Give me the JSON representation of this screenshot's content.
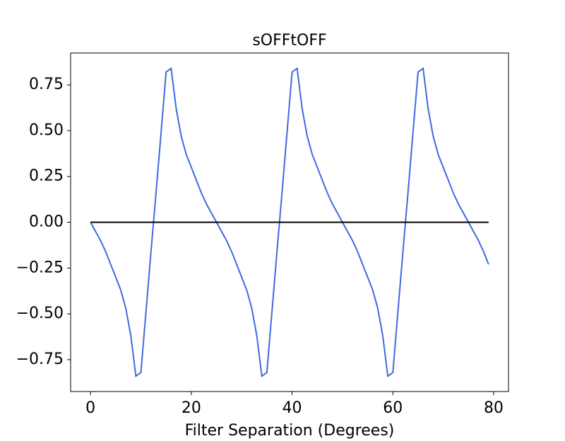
{
  "chart_data": {
    "type": "line",
    "title": "sOFFtOFF",
    "x_label": "Filter Separation (Degrees)",
    "x": [
      0,
      1,
      2,
      3,
      4,
      5,
      6,
      7,
      8,
      9,
      10,
      11,
      12,
      13,
      14,
      15,
      16,
      17,
      18,
      19,
      20,
      21,
      22,
      23,
      24,
      25,
      26,
      27,
      28,
      29,
      30,
      31,
      32,
      33,
      34,
      35,
      36,
      37,
      38,
      39,
      40,
      41,
      42,
      43,
      44,
      45,
      46,
      47,
      48,
      49,
      50,
      51,
      52,
      53,
      54,
      55,
      56,
      57,
      58,
      59,
      60,
      61,
      62,
      63,
      64,
      65,
      66,
      67,
      68,
      69,
      70,
      71,
      72,
      73,
      74,
      75,
      76,
      77,
      78,
      79
    ],
    "series": [
      {
        "color": "#4169e1",
        "values": [
          0,
          -0.05,
          -0.1,
          -0.16,
          -0.23,
          -0.3,
          -0.37,
          -0.47,
          -0.62,
          -0.84,
          -0.82,
          -0.49,
          -0.16,
          0.16,
          0.49,
          0.82,
          0.84,
          0.62,
          0.47,
          0.37,
          0.3,
          0.23,
          0.16,
          0.1,
          0.05,
          0,
          -0.05,
          -0.1,
          -0.16,
          -0.23,
          -0.3,
          -0.37,
          -0.47,
          -0.62,
          -0.84,
          -0.82,
          -0.49,
          -0.16,
          0.16,
          0.49,
          0.82,
          0.84,
          0.62,
          0.47,
          0.37,
          0.3,
          0.23,
          0.16,
          0.1,
          0.05,
          0,
          -0.05,
          -0.1,
          -0.16,
          -0.23,
          -0.3,
          -0.37,
          -0.47,
          -0.62,
          -0.84,
          -0.82,
          -0.49,
          -0.16,
          0.16,
          0.49,
          0.82,
          0.84,
          0.62,
          0.47,
          0.37,
          0.3,
          0.23,
          0.16,
          0.1,
          0.05,
          0,
          -0.05,
          -0.1,
          -0.16,
          -0.23
        ]
      },
      {
        "color": "#000000",
        "values": [
          0,
          0,
          0,
          0,
          0,
          0,
          0,
          0,
          0,
          0,
          0,
          0,
          0,
          0,
          0,
          0,
          0,
          0,
          0,
          0,
          0,
          0,
          0,
          0,
          0,
          0,
          0,
          0,
          0,
          0,
          0,
          0,
          0,
          0,
          0,
          0,
          0,
          0,
          0,
          0,
          0,
          0,
          0,
          0,
          0,
          0,
          0,
          0,
          0,
          0,
          0,
          0,
          0,
          0,
          0,
          0,
          0,
          0,
          0,
          0,
          0,
          0,
          0,
          0,
          0,
          0,
          0,
          0,
          0,
          0,
          0,
          0,
          0,
          0,
          0,
          0,
          0,
          0,
          0,
          0
        ]
      }
    ],
    "xlim": [
      -3.95,
      82.95
    ],
    "xticks": [
      0,
      20,
      40,
      60,
      80
    ],
    "ylim": [
      -0.924,
      0.924
    ],
    "yticks": [
      {
        "value": -0.75,
        "label": "−0.75"
      },
      {
        "value": -0.5,
        "label": "−0.50"
      },
      {
        "value": -0.25,
        "label": "−0.25"
      },
      {
        "value": 0,
        "label": "0.00"
      },
      {
        "value": 0.25,
        "label": "0.25"
      },
      {
        "value": 0.5,
        "label": "0.50"
      },
      0.75
    ]
  }
}
